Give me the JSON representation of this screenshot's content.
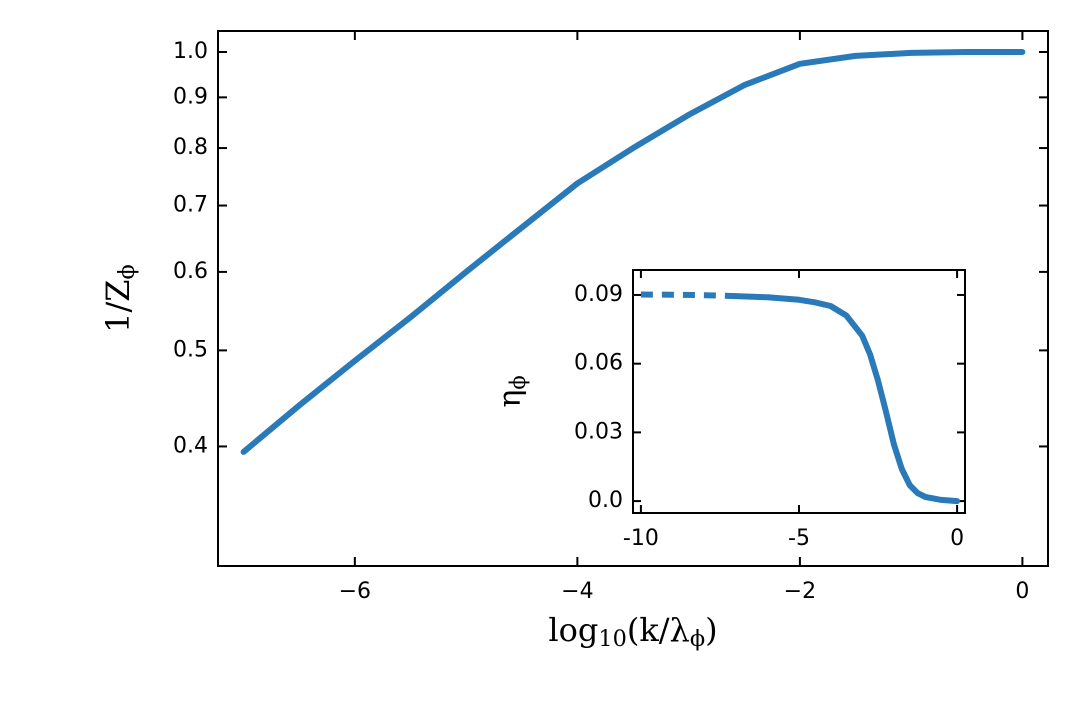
{
  "chart_data": [
    {
      "type": "line",
      "yscale": "log",
      "xlabel": [
        {
          "text": "log"
        },
        {
          "text": "10",
          "sub": true
        },
        {
          "text": "(k/λ"
        },
        {
          "text": "ϕ",
          "sub": true
        },
        {
          "text": ")"
        }
      ],
      "ylabel": [
        {
          "text": "1/Z"
        },
        {
          "text": "ϕ",
          "sub": true
        }
      ],
      "xlim": [
        -7.23,
        0.23
      ],
      "ylim": [
        0.303,
        1.05
      ],
      "xticks": [
        {
          "value": -6,
          "label": "−6"
        },
        {
          "value": -4,
          "label": "−4"
        },
        {
          "value": -2,
          "label": "−2"
        },
        0
      ],
      "yticks": [
        0.4,
        0.5,
        0.6,
        0.7,
        0.8,
        0.9,
        {
          "value": 1,
          "label": "1.0"
        }
      ],
      "series": [
        {
          "color": "#2a7ab9",
          "dashed": false,
          "x": [
            -7,
            -6.5,
            -6,
            -5.5,
            -5,
            -4.5,
            -4,
            -3.5,
            -3,
            -2.5,
            -2,
            -1.5,
            -1,
            -0.5,
            0
          ],
          "values": [
            0.395,
            0.44,
            0.488,
            0.54,
            0.6,
            0.665,
            0.737,
            0.8,
            0.864,
            0.926,
            0.973,
            0.991,
            0.998,
            1.0,
            1.0
          ]
        }
      ]
    },
    {
      "type": "line",
      "yscale": "linear",
      "ylabel": [
        {
          "text": "η"
        },
        {
          "text": "ϕ",
          "sub": true
        }
      ],
      "xlim": [
        -10.25,
        0.25
      ],
      "ylim": [
        -0.0052,
        0.1009
      ],
      "xticks": [
        -10,
        -5,
        0
      ],
      "yticks": [
        {
          "value": 0,
          "label": "0.0"
        },
        0.03,
        0.06,
        0.09
      ],
      "series": [
        {
          "color": "#2a7ab9",
          "dashed": true,
          "x": [
            -10,
            -9,
            -8,
            -7
          ],
          "values": [
            0.0902,
            0.0901,
            0.0899,
            0.0895
          ]
        },
        {
          "color": "#2a7ab9",
          "dashed": false,
          "x": [
            -7,
            -6,
            -5,
            -4.5,
            -4,
            -3.5,
            -3,
            -2.75,
            -2.5,
            -2.25,
            -2,
            -1.75,
            -1.5,
            -1.25,
            -1,
            -0.5,
            0
          ],
          "values": [
            0.0895,
            0.089,
            0.0879,
            0.0868,
            0.0852,
            0.081,
            0.0722,
            0.064,
            0.0526,
            0.039,
            0.0248,
            0.014,
            0.007,
            0.0035,
            0.0018,
            0.0005,
            0.0
          ]
        }
      ]
    }
  ]
}
